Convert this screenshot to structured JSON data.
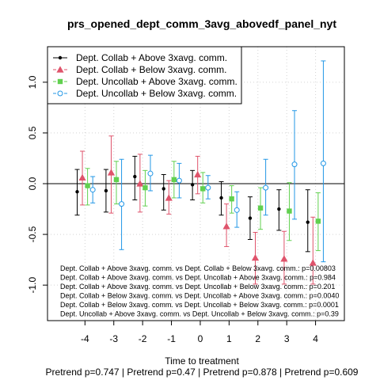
{
  "chart_data": {
    "type": "scatter",
    "title": "prs_opened_dept_comm_3avg_abovedf_panel_nyt",
    "xlabel": "Time to treatment",
    "subtitle": "Pretrend p=0.747 | Pretrend p=0.47 | Pretrend p=0.878 | Pretrend p=0.609",
    "ylabel": "",
    "xlim": [
      -5.3,
      5.0
    ],
    "ylim": [
      -1.35,
      1.35
    ],
    "x_ticks": [
      -4,
      -3,
      -2,
      -1,
      0,
      1,
      2,
      3,
      4
    ],
    "x_tick_labels": [
      "-4",
      "-3",
      "-2",
      "-1",
      "0",
      "1",
      "2",
      "3",
      "4"
    ],
    "y_ticks": [
      -1.0,
      -0.5,
      0.0,
      0.5,
      1.0
    ],
    "y_tick_labels": [
      "-1.0",
      "-0.5",
      "0.0",
      "0.5",
      "1.0"
    ],
    "grid": true,
    "zero_line": 0,
    "legend_position": "top-left",
    "series": [
      {
        "name": "Dept. Collab + Above 3xavg. comm.",
        "color": "#000000",
        "marker": "filled-circle",
        "line": "solid",
        "offset": -0.27,
        "x": [
          -4,
          -3,
          -2,
          -1,
          0,
          1,
          2,
          3,
          4
        ],
        "y": [
          -0.08,
          -0.07,
          0.07,
          -0.05,
          -0.01,
          -0.14,
          -0.34,
          -0.25,
          -0.38
        ],
        "lower": [
          -0.31,
          -0.28,
          -0.16,
          -0.26,
          -0.16,
          -0.31,
          -0.55,
          -0.46,
          -0.67
        ],
        "upper": [
          0.14,
          0.14,
          0.27,
          0.09,
          0.13,
          0.02,
          -0.13,
          -0.06,
          -0.06
        ]
      },
      {
        "name": "Dept. Collab + Below 3xavg. comm.",
        "color": "#DF536B",
        "marker": "filled-triangle",
        "line": "dashed",
        "offset": -0.09,
        "x": [
          -4,
          -3,
          -2,
          -1,
          0,
          1,
          2,
          3,
          4
        ],
        "y": [
          0.06,
          0.11,
          0.0,
          -0.14,
          0.09,
          -0.42,
          -0.73,
          -0.74,
          -0.78
        ],
        "lower": [
          -0.21,
          -0.29,
          -0.28,
          -0.3,
          -0.1,
          -0.62,
          -0.99,
          -0.99,
          -0.99
        ],
        "upper": [
          0.32,
          0.47,
          0.29,
          0.03,
          0.27,
          -0.2,
          -0.48,
          -0.47,
          -0.33
        ]
      },
      {
        "name": "Dept. Uncollab + Above 3xavg. comm.",
        "color": "#61D04F",
        "marker": "filled-square",
        "line": "dashed",
        "offset": 0.09,
        "x": [
          -4,
          -3,
          -2,
          -1,
          0,
          1,
          2,
          3,
          4
        ],
        "y": [
          -0.02,
          0.04,
          -0.04,
          0.04,
          -0.05,
          -0.15,
          -0.24,
          -0.27,
          -0.37
        ],
        "lower": [
          -0.21,
          -0.2,
          -0.22,
          -0.14,
          -0.19,
          -0.29,
          -0.45,
          -0.56,
          -0.66
        ],
        "upper": [
          0.15,
          0.22,
          0.13,
          0.22,
          0.11,
          -0.02,
          -0.04,
          0.01,
          -0.09
        ]
      },
      {
        "name": "Dept. Uncollab + Below 3xavg. comm.",
        "color": "#2297E6",
        "marker": "open-circle",
        "line": "dashed",
        "offset": 0.27,
        "x": [
          -4,
          -3,
          -2,
          -1,
          0,
          1,
          2,
          3,
          4
        ],
        "y": [
          -0.06,
          -0.2,
          0.1,
          0.03,
          -0.04,
          -0.26,
          -0.04,
          0.19,
          0.2
        ],
        "lower": [
          -0.19,
          -0.65,
          -0.07,
          -0.14,
          -0.15,
          -0.43,
          -0.31,
          -0.35,
          -0.77
        ],
        "upper": [
          0.07,
          0.24,
          0.28,
          0.2,
          0.08,
          -0.08,
          0.24,
          0.72,
          1.21
        ]
      }
    ],
    "annotations": [
      "Dept. Collab + Above 3xavg. comm. vs Dept. Collab + Below 3xavg. comm.: p=0.00803",
      "Dept. Collab + Above 3xavg. comm. vs Dept. Uncollab + Above 3xavg. comm.: p=0.984",
      "Dept. Collab + Above 3xavg. comm. vs Dept. Uncollab + Below 3xavg. comm.: p=0.201",
      "Dept. Collab + Below 3xavg. comm. vs Dept. Uncollab + Above 3xavg. comm.: p=0.0040",
      "Dept. Collab + Below 3xavg. comm. vs Dept. Uncollab + Below 3xavg. comm.: p=0.0001",
      "Dept. Uncollab + Above 3xavg. comm. vs Dept. Uncollab + Below 3xavg. comm.: p=0.39"
    ]
  }
}
